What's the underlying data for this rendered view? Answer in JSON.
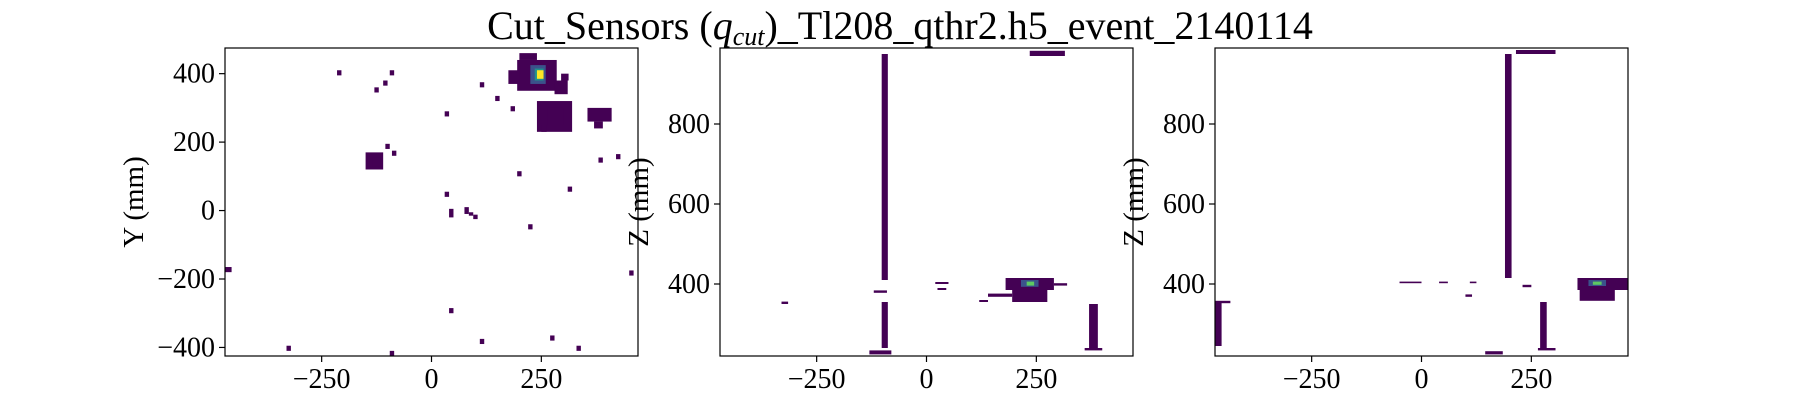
{
  "figure": {
    "title_prefix": "Cut_Sensors (",
    "title_var": "q",
    "title_sub": "cut",
    "title_suffix": ")_Tl208_qthr2.h5_event_2140114"
  },
  "colors": {
    "dark": "#440154",
    "mid": "#3b528b",
    "teal": "#21918c",
    "green": "#5ec962",
    "yellow": "#fde725"
  },
  "chart_data": [
    {
      "type": "heatmap",
      "colormap": "viridis",
      "xlabel": "",
      "ylabel": "Y (mm)",
      "xlim": [
        -470,
        470
      ],
      "ylim": [
        -425,
        475
      ],
      "xticks": [
        -250,
        0,
        250
      ],
      "xtick_labels": [
        "−250",
        "0",
        "250"
      ],
      "yticks": [
        -400,
        -200,
        0,
        200,
        400
      ],
      "ytick_labels": [
        "−400",
        "−200",
        "0",
        "200",
        "400"
      ],
      "grid": false,
      "cells": [
        {
          "x": [
            195,
            285
          ],
          "y": [
            350,
            440
          ],
          "v": 0.05
        },
        {
          "x": [
            175,
            200
          ],
          "y": [
            370,
            410
          ],
          "v": 0.05
        },
        {
          "x": [
            280,
            310
          ],
          "y": [
            340,
            380
          ],
          "v": 0.05
        },
        {
          "x": [
            200,
            240
          ],
          "y": [
            440,
            460
          ],
          "v": 0.05
        },
        {
          "x": [
            295,
            312
          ],
          "y": [
            380,
            400
          ],
          "v": 0.05
        },
        {
          "x": [
            225,
            260
          ],
          "y": [
            370,
            425
          ],
          "v": 0.35
        },
        {
          "x": [
            235,
            255
          ],
          "y": [
            380,
            415
          ],
          "v": 0.65
        },
        {
          "x": [
            240,
            255
          ],
          "y": [
            385,
            410
          ],
          "v": 0.95
        },
        {
          "x": [
            240,
            320
          ],
          "y": [
            230,
            320
          ],
          "v": 0.05
        },
        {
          "x": [
            265,
            300
          ],
          "y": [
            250,
            300
          ],
          "v": 0.12
        },
        {
          "x": [
            250,
            262
          ],
          "y": [
            230,
            250
          ],
          "v": 0.02
        },
        {
          "x": [
            355,
            410
          ],
          "y": [
            260,
            300
          ],
          "v": 0.05
        },
        {
          "x": [
            370,
            390
          ],
          "y": [
            240,
            260
          ],
          "v": 0.05
        },
        {
          "x": [
            -150,
            -110
          ],
          "y": [
            120,
            170
          ],
          "v": 0.05
        },
        {
          "x": [
            -135,
            -115
          ],
          "y": [
            130,
            155
          ],
          "v": 0.1
        },
        {
          "x": [
            -105,
            -95
          ],
          "y": [
            180,
            195
          ],
          "v": 0.05
        },
        {
          "x": [
            -90,
            -80
          ],
          "y": [
            160,
            175
          ],
          "v": 0.05
        },
        {
          "x": [
            -215,
            -205
          ],
          "y": [
            395,
            410
          ],
          "v": 0.05
        },
        {
          "x": [
            -110,
            -100
          ],
          "y": [
            365,
            380
          ],
          "v": 0.05
        },
        {
          "x": [
            -95,
            -85
          ],
          "y": [
            395,
            410
          ],
          "v": 0.05
        },
        {
          "x": [
            -130,
            -120
          ],
          "y": [
            345,
            360
          ],
          "v": 0.05
        },
        {
          "x": [
            110,
            120
          ],
          "y": [
            360,
            375
          ],
          "v": 0.05
        },
        {
          "x": [
            145,
            155
          ],
          "y": [
            320,
            335
          ],
          "v": 0.05
        },
        {
          "x": [
            180,
            190
          ],
          "y": [
            290,
            305
          ],
          "v": 0.05
        },
        {
          "x": [
            30,
            40
          ],
          "y": [
            275,
            290
          ],
          "v": 0.05
        },
        {
          "x": [
            195,
            205
          ],
          "y": [
            100,
            115
          ],
          "v": 0.05
        },
        {
          "x": [
            310,
            320
          ],
          "y": [
            55,
            70
          ],
          "v": 0.05
        },
        {
          "x": [
            380,
            390
          ],
          "y": [
            140,
            155
          ],
          "v": 0.05
        },
        {
          "x": [
            420,
            430
          ],
          "y": [
            150,
            165
          ],
          "v": 0.05
        },
        {
          "x": [
            30,
            40
          ],
          "y": [
            40,
            55
          ],
          "v": 0.05
        },
        {
          "x": [
            40,
            50
          ],
          "y": [
            -20,
            5
          ],
          "v": 0.05
        },
        {
          "x": [
            75,
            85
          ],
          "y": [
            -10,
            10
          ],
          "v": 0.05
        },
        {
          "x": [
            85,
            95
          ],
          "y": [
            -15,
            -5
          ],
          "v": 0.05
        },
        {
          "x": [
            95,
            105
          ],
          "y": [
            -25,
            -12
          ],
          "v": 0.05
        },
        {
          "x": [
            220,
            230
          ],
          "y": [
            -55,
            -40
          ],
          "v": 0.05
        },
        {
          "x": [
            -470,
            -455
          ],
          "y": [
            -180,
            -165
          ],
          "v": 0.05
        },
        {
          "x": [
            450,
            460
          ],
          "y": [
            -190,
            -175
          ],
          "v": 0.05
        },
        {
          "x": [
            40,
            50
          ],
          "y": [
            -300,
            -285
          ],
          "v": 0.05
        },
        {
          "x": [
            110,
            120
          ],
          "y": [
            -390,
            -375
          ],
          "v": 0.05
        },
        {
          "x": [
            -330,
            -320
          ],
          "y": [
            -410,
            -395
          ],
          "v": 0.05
        },
        {
          "x": [
            -95,
            -85
          ],
          "y": [
            -425,
            -410
          ],
          "v": 0.05
        },
        {
          "x": [
            270,
            280
          ],
          "y": [
            -380,
            -365
          ],
          "v": 0.05
        },
        {
          "x": [
            330,
            340
          ],
          "y": [
            -410,
            -395
          ],
          "v": 0.05
        }
      ]
    },
    {
      "type": "heatmap",
      "colormap": "viridis",
      "xlabel": "",
      "ylabel": "Z (mm)",
      "xlim": [
        -470,
        470
      ],
      "ylim": [
        220,
        990
      ],
      "xticks": [
        -250,
        0,
        250
      ],
      "xtick_labels": [
        "−250",
        "0",
        "250"
      ],
      "yticks": [
        400,
        600,
        800
      ],
      "ytick_labels": [
        "400",
        "600",
        "800"
      ],
      "grid": false,
      "cells": [
        {
          "x": [
            -102,
            -88
          ],
          "y": [
            410,
            975
          ],
          "v": 0.05
        },
        {
          "x": [
            -102,
            -88
          ],
          "y": [
            240,
            355
          ],
          "v": 0.05
        },
        {
          "x": [
            -130,
            -80
          ],
          "y": [
            224,
            234
          ],
          "v": 0.05
        },
        {
          "x": [
            235,
            315
          ],
          "y": [
            970,
            983
          ],
          "v": 0.05
        },
        {
          "x": [
            180,
            290
          ],
          "y": [
            385,
            415
          ],
          "v": 0.05
        },
        {
          "x": [
            215,
            255
          ],
          "y": [
            393,
            410
          ],
          "v": 0.35
        },
        {
          "x": [
            228,
            245
          ],
          "y": [
            396,
            406
          ],
          "v": 0.8
        },
        {
          "x": [
            195,
            275
          ],
          "y": [
            355,
            385
          ],
          "v": 0.05
        },
        {
          "x": [
            140,
            195
          ],
          "y": [
            368,
            376
          ],
          "v": 0.05
        },
        {
          "x": [
            290,
            320
          ],
          "y": [
            396,
            402
          ],
          "v": 0.05
        },
        {
          "x": [
            20,
            50
          ],
          "y": [
            400,
            405
          ],
          "v": 0.05
        },
        {
          "x": [
            25,
            45
          ],
          "y": [
            385,
            390
          ],
          "v": 0.05
        },
        {
          "x": [
            -330,
            -315
          ],
          "y": [
            350,
            356
          ],
          "v": 0.05
        },
        {
          "x": [
            120,
            140
          ],
          "y": [
            355,
            360
          ],
          "v": 0.05
        },
        {
          "x": [
            -120,
            -90
          ],
          "y": [
            378,
            384
          ],
          "v": 0.05
        },
        {
          "x": [
            370,
            390
          ],
          "y": [
            240,
            350
          ],
          "v": 0.05
        },
        {
          "x": [
            360,
            400
          ],
          "y": [
            234,
            240
          ],
          "v": 0.05
        }
      ]
    },
    {
      "type": "heatmap",
      "colormap": "viridis",
      "xlabel": "",
      "ylabel": "Z (mm)",
      "xlim": [
        -470,
        470
      ],
      "ylim": [
        220,
        990
      ],
      "xticks": [
        -250,
        0,
        250
      ],
      "xtick_labels": [
        "−250",
        "0",
        "250"
      ],
      "yticks": [
        400,
        600,
        800
      ],
      "ytick_labels": [
        "400",
        "600",
        "800"
      ],
      "grid": false,
      "cells": [
        {
          "x": [
            190,
            205
          ],
          "y": [
            415,
            975
          ],
          "v": 0.05
        },
        {
          "x": [
            215,
            305
          ],
          "y": [
            975,
            985
          ],
          "v": 0.05
        },
        {
          "x": [
            -470,
            -455
          ],
          "y": [
            245,
            355
          ],
          "v": 0.05
        },
        {
          "x": [
            -470,
            -435
          ],
          "y": [
            352,
            358
          ],
          "v": 0.05
        },
        {
          "x": [
            -50,
            0
          ],
          "y": [
            402,
            406
          ],
          "v": 0.05
        },
        {
          "x": [
            40,
            60
          ],
          "y": [
            402,
            406
          ],
          "v": 0.05
        },
        {
          "x": [
            110,
            125
          ],
          "y": [
            402,
            406
          ],
          "v": 0.05
        },
        {
          "x": [
            230,
            250
          ],
          "y": [
            392,
            398
          ],
          "v": 0.05
        },
        {
          "x": [
            145,
            185
          ],
          "y": [
            224,
            232
          ],
          "v": 0.05
        },
        {
          "x": [
            270,
            285
          ],
          "y": [
            240,
            355
          ],
          "v": 0.05
        },
        {
          "x": [
            265,
            305
          ],
          "y": [
            234,
            240
          ],
          "v": 0.05
        },
        {
          "x": [
            355,
            470
          ],
          "y": [
            385,
            415
          ],
          "v": 0.05
        },
        {
          "x": [
            380,
            420
          ],
          "y": [
            395,
            410
          ],
          "v": 0.4
        },
        {
          "x": [
            390,
            410
          ],
          "y": [
            398,
            406
          ],
          "v": 0.85
        },
        {
          "x": [
            360,
            440
          ],
          "y": [
            358,
            385
          ],
          "v": 0.05
        },
        {
          "x": [
            100,
            115
          ],
          "y": [
            368,
            374
          ],
          "v": 0.05
        }
      ]
    }
  ]
}
